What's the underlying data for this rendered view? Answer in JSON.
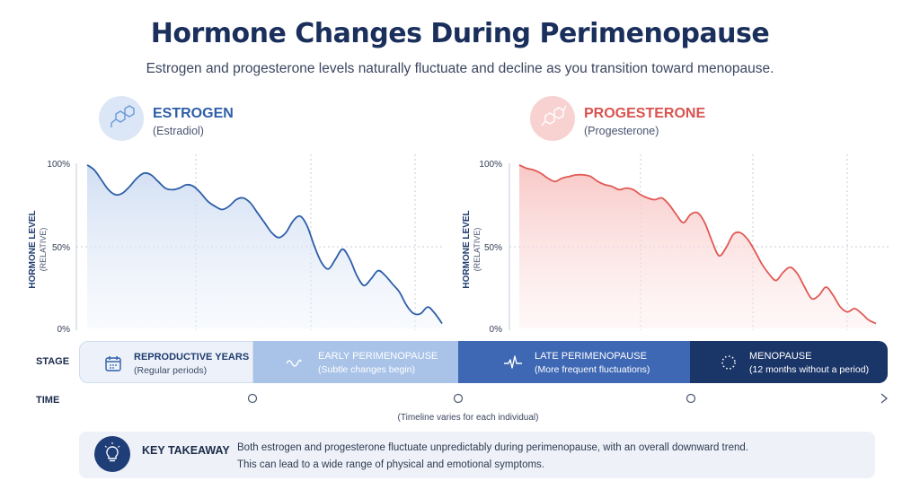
{
  "title": "Hormone Changes During Perimenopause",
  "subtitle": "Estrogen and progesterone levels naturally fluctuate and decline as you transition toward menopause.",
  "colors": {
    "estrogen": "#2d5ea8",
    "progesterone": "#e05a55",
    "navy": "#1a2f5c"
  },
  "hormones": [
    {
      "name": "ESTROGEN",
      "sub": "(Estradiol)",
      "icon": "molecule-icon"
    },
    {
      "name": "PROGESTERONE",
      "sub": "(Progesterone)",
      "icon": "molecule-icon"
    }
  ],
  "chart_data": [
    {
      "type": "area",
      "title": "",
      "series_name": "",
      "ylabel": "HORMONE LEVEL",
      "ylabel_sub": "(RELATIVE)",
      "ylim": [
        0,
        100
      ],
      "y_ticks": [
        "100%",
        "50%",
        "0%"
      ],
      "y_tick_values": [
        100,
        50,
        0
      ],
      "grid": "dashed",
      "x": [
        0,
        2,
        4,
        6,
        8,
        10,
        12,
        14,
        16,
        18,
        20,
        22,
        24,
        26,
        28,
        30,
        32,
        34,
        36,
        38,
        40,
        42,
        44,
        46,
        48,
        50,
        52,
        54,
        56,
        58,
        60,
        62,
        64,
        66,
        68,
        70,
        72,
        74,
        76,
        78,
        80,
        82,
        84,
        86,
        88,
        90,
        92,
        94,
        96,
        98,
        100
      ],
      "values": [
        99,
        96,
        90,
        84,
        81,
        82,
        86,
        91,
        94,
        93,
        89,
        85,
        84,
        85,
        87,
        86,
        82,
        77,
        74,
        72,
        74,
        78,
        79,
        76,
        70,
        64,
        58,
        55,
        58,
        65,
        68,
        62,
        50,
        40,
        36,
        42,
        48,
        42,
        32,
        26,
        30,
        35,
        32,
        27,
        22,
        14,
        9,
        9,
        13,
        9,
        3
      ]
    },
    {
      "type": "area",
      "title": "",
      "series_name": "",
      "ylabel": "HORMONE LEVEL",
      "ylabel_sub": "(RELATIVE)",
      "ylim": [
        0,
        100
      ],
      "y_ticks": [
        "100%",
        "50%",
        "0%"
      ],
      "y_tick_values": [
        100,
        50,
        0
      ],
      "grid": "dashed",
      "x": [
        0,
        2,
        4,
        6,
        8,
        10,
        12,
        14,
        16,
        18,
        20,
        22,
        24,
        26,
        28,
        30,
        32,
        34,
        36,
        38,
        40,
        42,
        44,
        46,
        48,
        50,
        52,
        54,
        56,
        58,
        60,
        62,
        64,
        66,
        68,
        70,
        72,
        74,
        76,
        78,
        80,
        82,
        84,
        86,
        88,
        90,
        92,
        94,
        96,
        98,
        100
      ],
      "values": [
        99,
        97,
        96,
        94,
        91,
        89,
        91,
        92,
        93,
        93,
        92,
        89,
        87,
        86,
        84,
        85,
        84,
        81,
        79,
        78,
        79,
        75,
        69,
        64,
        69,
        70,
        64,
        53,
        44,
        49,
        57,
        58,
        54,
        47,
        39,
        33,
        29,
        34,
        37,
        33,
        25,
        18,
        20,
        25,
        20,
        13,
        10,
        12,
        9,
        5,
        3
      ]
    }
  ],
  "timeline": {
    "stage_label": "STAGE",
    "time_label": "TIME",
    "note": "(Timeline varies for each individual)",
    "stages": [
      {
        "name": "REPRODUCTIVE YEARS",
        "desc": "(Regular periods)",
        "icon": "calendar-icon"
      },
      {
        "name": "EARLY PERIMENOPAUSE",
        "desc": "(Subtle changes begin)",
        "icon": "wave-icon"
      },
      {
        "name": "LATE PERIMENOPAUSE",
        "desc": "(More frequent fluctuations)",
        "icon": "pulse-icon"
      },
      {
        "name": "MENOPAUSE",
        "desc": "(12 months without a period)",
        "icon": "dotted-circle-icon"
      }
    ]
  },
  "takeaway": {
    "title": "KEY TAKEAWAY",
    "line1": "Both estrogen and progesterone fluctuate unpredictably during perimenopause, with an overall downward trend.",
    "line2": "This can lead to a wide range of physical and emotional symptoms.",
    "icon": "lightbulb-icon"
  }
}
